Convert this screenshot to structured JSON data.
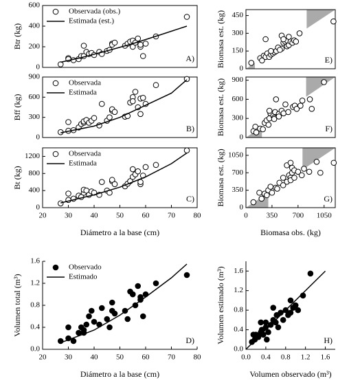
{
  "chart_data": [
    {
      "type": "scatter",
      "panel_label": "A)",
      "y_label": "Btr (kg)",
      "xlim": [
        20,
        80
      ],
      "ylim": [
        0,
        600
      ],
      "yticks": [
        0,
        200,
        400,
        600
      ],
      "series": [
        {
          "name": "Observada (obs.)",
          "marker": "open",
          "color": "#000000",
          "x": [
            27,
            30,
            30,
            32,
            34,
            35,
            36,
            36,
            37,
            38,
            39,
            40,
            42,
            43,
            45,
            46,
            47,
            47,
            48,
            52,
            53,
            54,
            55,
            55,
            56,
            57,
            58,
            58,
            59,
            60,
            64,
            76
          ],
          "values": [
            30,
            90,
            80,
            70,
            80,
            110,
            110,
            210,
            150,
            130,
            140,
            120,
            150,
            130,
            160,
            170,
            230,
            220,
            240,
            210,
            230,
            250,
            200,
            260,
            240,
            280,
            200,
            220,
            110,
            230,
            300,
            490
          ]
        },
        {
          "name": "Estimada (est.)",
          "marker": "line",
          "color": "#000000",
          "x": [
            27,
            35,
            45,
            55,
            65,
            76
          ],
          "values": [
            50,
            95,
            160,
            230,
            310,
            400
          ]
        }
      ]
    },
    {
      "type": "scatter",
      "panel_label": "B)",
      "y_label": "Bff (kg)",
      "xlim": [
        20,
        80
      ],
      "ylim": [
        0,
        900
      ],
      "yticks": [
        0,
        300,
        600,
        900
      ],
      "series": [
        {
          "name": "Observada",
          "marker": "open",
          "color": "#000000",
          "x": [
            27,
            30,
            30,
            32,
            34,
            35,
            36,
            36,
            37,
            38,
            39,
            40,
            42,
            43,
            45,
            46,
            47,
            47,
            48,
            52,
            53,
            54,
            55,
            55,
            56,
            57,
            58,
            58,
            59,
            60,
            64,
            76
          ],
          "values": [
            80,
            230,
            100,
            110,
            150,
            200,
            220,
            240,
            260,
            220,
            250,
            290,
            180,
            500,
            250,
            300,
            400,
            420,
            380,
            310,
            320,
            520,
            600,
            540,
            680,
            450,
            580,
            350,
            590,
            500,
            780,
            870
          ]
        },
        {
          "name": "Estimada",
          "marker": "line",
          "color": "#000000",
          "x": [
            27,
            40,
            50,
            60,
            70,
            76
          ],
          "values": [
            70,
            170,
            300,
            480,
            660,
            860
          ]
        }
      ]
    },
    {
      "type": "scatter",
      "panel_label": "C)",
      "y_label": "Bt (kg)",
      "x_label": "Diámetro a la base (cm)",
      "xlim": [
        20,
        80
      ],
      "ylim": [
        0,
        1400
      ],
      "xticks": [
        20,
        30,
        40,
        50,
        60,
        70,
        80
      ],
      "yticks": [
        0,
        400,
        800,
        1200
      ],
      "series": [
        {
          "name": "Observada",
          "marker": "open",
          "color": "#000000",
          "x": [
            27,
            30,
            30,
            32,
            34,
            35,
            36,
            36,
            37,
            38,
            39,
            40,
            42,
            43,
            45,
            46,
            47,
            47,
            48,
            52,
            53,
            54,
            55,
            55,
            56,
            57,
            58,
            58,
            59,
            60,
            64,
            76
          ],
          "values": [
            100,
            330,
            180,
            210,
            280,
            250,
            350,
            420,
            400,
            300,
            380,
            350,
            300,
            600,
            400,
            350,
            620,
            650,
            550,
            500,
            560,
            620,
            720,
            900,
            780,
            850,
            550,
            600,
            750,
            950,
            1000,
            1340
          ]
        },
        {
          "name": "Estimada",
          "marker": "line",
          "color": "#000000",
          "x": [
            27,
            40,
            50,
            60,
            70,
            76
          ],
          "values": [
            110,
            300,
            480,
            720,
            1030,
            1280
          ]
        }
      ]
    },
    {
      "type": "scatter",
      "panel_label": "D)",
      "y_label": "Volumen total (m³)",
      "x_label": "Diámetro a la base (cm)",
      "xlim": [
        20,
        80
      ],
      "ylim": [
        0,
        1.6
      ],
      "xticks": [
        20,
        30,
        40,
        50,
        60,
        70,
        80
      ],
      "yticks": [
        {
          "value": 0,
          "label": "0.0"
        },
        0.4,
        0.8,
        1.2,
        1.6
      ],
      "series": [
        {
          "name": "Observado",
          "marker": "filled",
          "color": "#000000",
          "x": [
            27,
            30,
            30,
            32,
            34,
            35,
            36,
            36,
            37,
            38,
            39,
            40,
            42,
            43,
            45,
            46,
            47,
            47,
            48,
            52,
            53,
            54,
            55,
            55,
            56,
            57,
            58,
            58,
            59,
            60,
            64,
            76
          ],
          "values": [
            0.15,
            0.4,
            0.2,
            0.15,
            0.3,
            0.4,
            0.35,
            0.3,
            0.45,
            0.6,
            0.7,
            0.5,
            0.45,
            0.75,
            0.55,
            0.4,
            0.85,
            0.7,
            0.65,
            0.7,
            0.55,
            1.05,
            1.0,
            1.0,
            0.8,
            1.15,
            0.95,
            0.9,
            0.6,
            1.0,
            1.2,
            1.35
          ]
        },
        {
          "name": "Estimado",
          "marker": "line",
          "color": "#000000",
          "x": [
            27,
            40,
            50,
            60,
            70,
            76
          ],
          "values": [
            0.12,
            0.35,
            0.62,
            0.95,
            1.3,
            1.55
          ]
        }
      ]
    },
    {
      "type": "scatter",
      "panel_label": "E)",
      "y_label": "Biomasa est. (kg)",
      "xlim": [
        0,
        500
      ],
      "ylim": [
        0,
        500
      ],
      "yticks": [
        0,
        150,
        300,
        450
      ],
      "shaded_regions": [
        [
          0,
          50
        ],
        [
          340,
          500
        ]
      ],
      "shade_color": "#aaaaaa",
      "series": [
        {
          "marker": "open",
          "color": "#000000",
          "x": [
            30,
            80,
            90,
            100,
            110,
            120,
            130,
            140,
            150,
            160,
            170,
            200,
            210,
            220,
            230,
            230,
            240,
            250,
            260,
            270,
            280,
            110,
            200,
            210,
            240,
            300,
            490,
            140,
            180,
            190
          ],
          "values": [
            50,
            90,
            70,
            110,
            100,
            130,
            100,
            120,
            130,
            140,
            150,
            170,
            220,
            230,
            240,
            190,
            200,
            230,
            220,
            240,
            230,
            250,
            280,
            250,
            270,
            300,
            400,
            150,
            180,
            160
          ]
        }
      ]
    },
    {
      "type": "scatter",
      "panel_label": "F)",
      "y_label": "Biomasa est. (kg)",
      "xlim": [
        0,
        950
      ],
      "ylim": [
        0,
        950
      ],
      "yticks": [
        0,
        300,
        600,
        900
      ],
      "shaded_regions": [
        [
          0,
          170
        ],
        [
          640,
          950
        ]
      ],
      "shade_color": "#aaaaaa",
      "series": [
        {
          "marker": "open",
          "color": "#000000",
          "x": [
            80,
            100,
            110,
            150,
            180,
            200,
            220,
            240,
            250,
            260,
            290,
            300,
            310,
            320,
            350,
            380,
            400,
            420,
            450,
            500,
            520,
            540,
            580,
            600,
            680,
            700,
            830,
            250,
            300,
            350
          ],
          "values": [
            100,
            170,
            80,
            140,
            130,
            230,
            270,
            200,
            300,
            380,
            340,
            310,
            400,
            600,
            370,
            420,
            380,
            520,
            400,
            480,
            500,
            450,
            500,
            580,
            600,
            450,
            870,
            420,
            290,
            330
          ]
        }
      ]
    },
    {
      "type": "scatter",
      "panel_label": "G)",
      "y_label": "Biomasa est. (kg)",
      "x_label": "Biomasa obs. (kg)",
      "xlim": [
        0,
        1200
      ],
      "ylim": [
        0,
        1200
      ],
      "xticks": [
        0,
        350,
        700,
        1050
      ],
      "yticks": [
        0,
        350,
        700,
        1050
      ],
      "shaded_regions": [
        [
          0,
          300
        ],
        [
          760,
          1200
        ]
      ],
      "shade_color": "#aaaaaa",
      "series": [
        {
          "marker": "open",
          "color": "#000000",
          "x": [
            100,
            180,
            210,
            250,
            280,
            300,
            330,
            350,
            400,
            420,
            450,
            500,
            550,
            580,
            600,
            620,
            600,
            620,
            650,
            700,
            750,
            780,
            850,
            950,
            1000,
            1180,
            550,
            600,
            650,
            500
          ],
          "values": [
            110,
            300,
            180,
            280,
            250,
            350,
            420,
            300,
            400,
            380,
            500,
            450,
            520,
            650,
            600,
            700,
            550,
            800,
            750,
            720,
            650,
            780,
            720,
            920,
            700,
            900,
            850,
            900,
            600,
            600
          ]
        }
      ]
    },
    {
      "type": "scatter",
      "panel_label": "H)",
      "y_label": "Volumen estimado (m³)",
      "x_label": "Volumen observado (m³)",
      "xlim": [
        0,
        1.8
      ],
      "ylim": [
        0,
        1.8
      ],
      "xticks": [
        {
          "value": 0,
          "label": "0.0"
        },
        0.4,
        0.8,
        1.2,
        1.6
      ],
      "yticks": [
        {
          "value": 0,
          "label": "0.0"
        },
        0.4,
        0.8,
        1.2,
        1.6
      ],
      "series": [
        {
          "marker": "filled",
          "color": "#000000",
          "x": [
            0.12,
            0.15,
            0.18,
            0.2,
            0.25,
            0.3,
            0.32,
            0.35,
            0.4,
            0.4,
            0.42,
            0.45,
            0.5,
            0.55,
            0.55,
            0.6,
            0.62,
            0.7,
            0.75,
            0.8,
            0.85,
            0.9,
            0.95,
            1.0,
            1.05,
            1.15,
            1.3,
            0.3,
            0.65,
            0.9
          ],
          "values": [
            0.15,
            0.3,
            0.2,
            0.3,
            0.25,
            0.35,
            0.4,
            0.3,
            0.45,
            0.55,
            0.2,
            0.35,
            0.5,
            0.6,
            0.85,
            0.55,
            0.7,
            0.75,
            0.6,
            0.8,
            0.7,
            1.0,
            0.85,
            0.9,
            0.8,
            1.1,
            1.55,
            0.55,
            0.45,
            0.75
          ]
        },
        {
          "marker": "line",
          "color": "#000000",
          "x": [
            0,
            1.6
          ],
          "values": [
            0,
            1.6
          ]
        }
      ]
    }
  ]
}
